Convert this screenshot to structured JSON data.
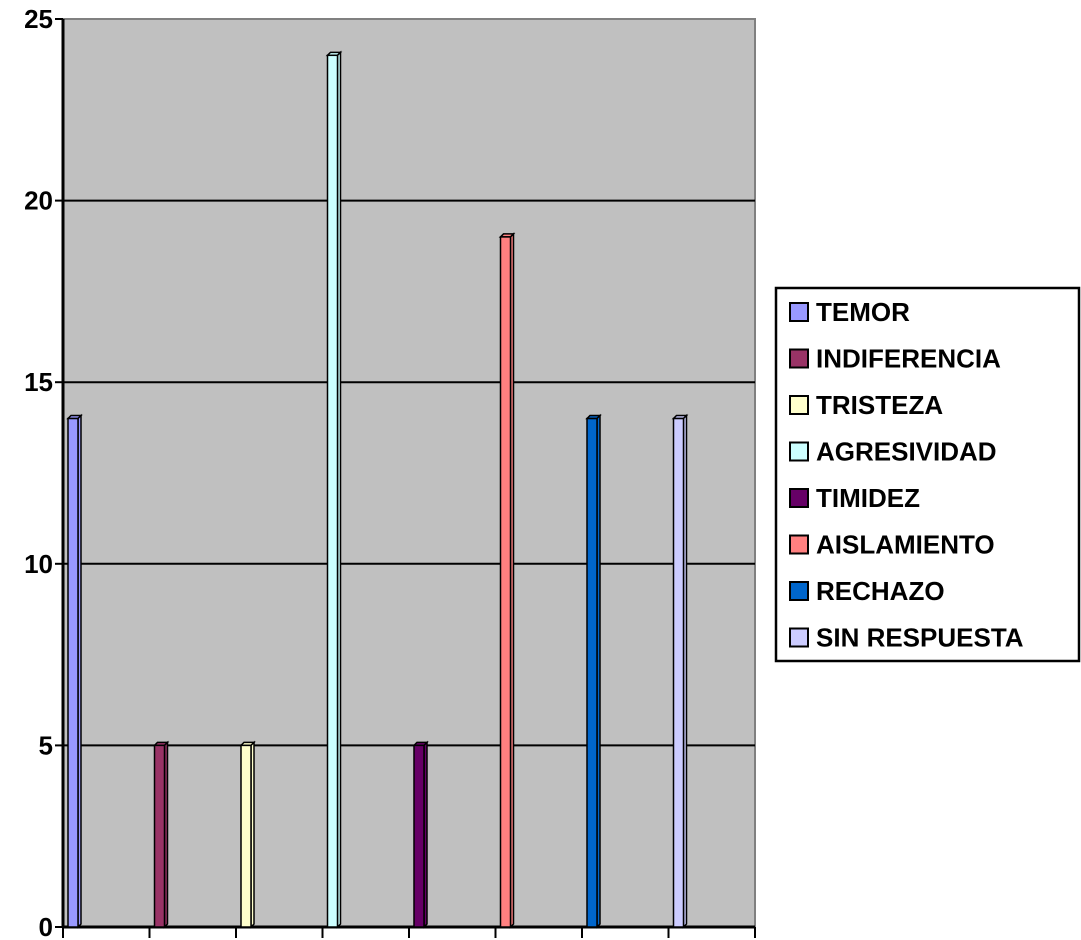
{
  "chart_data": {
    "type": "bar",
    "categories": [
      "TEMOR",
      "INDIFERENCIA",
      "TRISTEZA",
      "AGRESIVIDAD",
      "TIMIDEZ",
      "AISLAMIENTO",
      "RECHAZO",
      "SIN RESPUESTA"
    ],
    "values": [
      14,
      5,
      5,
      24,
      5,
      19,
      14,
      14
    ],
    "colors": [
      "#9999FF",
      "#993366",
      "#FFFFCC",
      "#CCFFFF",
      "#660066",
      "#FF8080",
      "#0066CC",
      "#CCCCFF"
    ],
    "ylim": [
      0,
      25
    ],
    "yticks": [
      "0",
      "5",
      "10",
      "15",
      "20",
      "25"
    ],
    "grid": true,
    "plot_background": "#C0C0C0",
    "legend": {
      "position": "right",
      "entries": [
        "TEMOR",
        "INDIFERENCIA",
        "TRISTEZA",
        "AGRESIVIDAD",
        "TIMIDEZ",
        "AISLAMIENTO",
        "RECHAZO",
        "SIN RESPUESTA"
      ]
    }
  }
}
